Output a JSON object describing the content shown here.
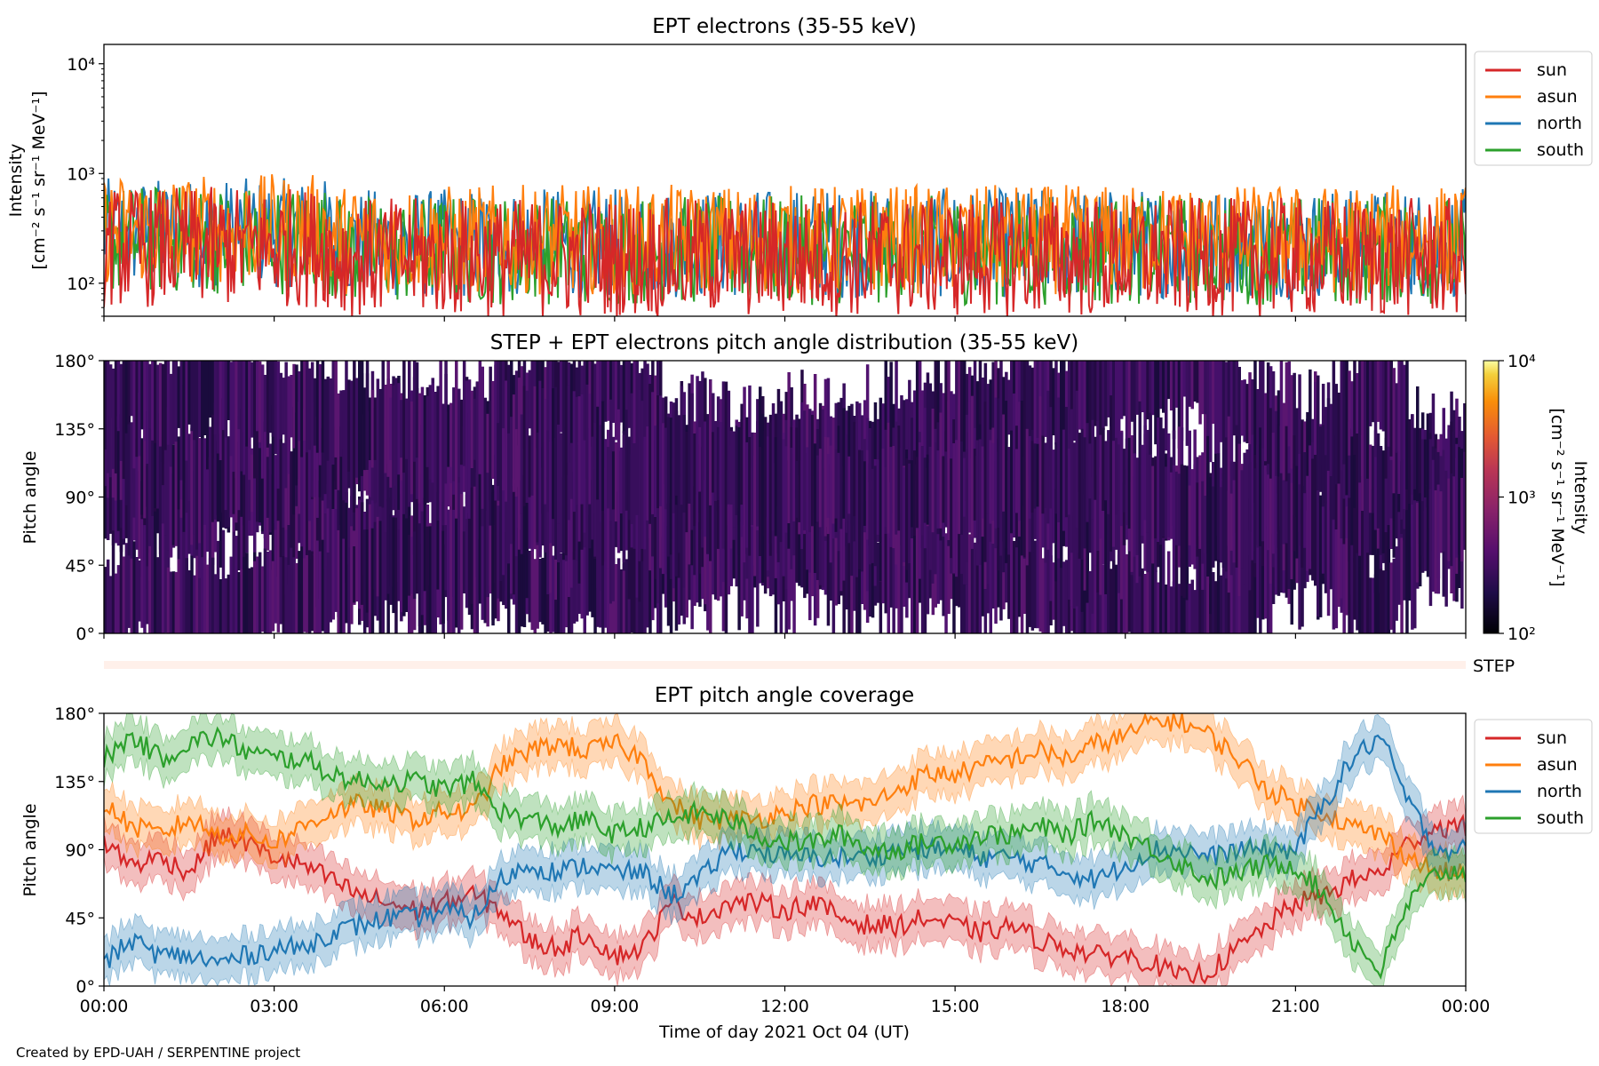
{
  "footer": "Created by EPD-UAH / SERPENTINE project",
  "xlabel": "Time of day 2021 Oct 04 (UT)",
  "x_ticks": [
    "00:00",
    "03:00",
    "06:00",
    "09:00",
    "12:00",
    "15:00",
    "18:00",
    "21:00",
    "00:00"
  ],
  "colors": {
    "sun": "#d62728",
    "asun": "#ff7f0e",
    "north": "#1f77b4",
    "south": "#2ca02c"
  },
  "chart_data": [
    {
      "type": "line",
      "title": "EPT electrons (35-55 keV)",
      "ylabel_line1": "Intensity",
      "ylabel_line2": "[cm⁻² s⁻¹ sr⁻¹ MeV⁻¹]",
      "y_scale": "log",
      "ylim": [
        50,
        15000
      ],
      "y_ticks": [
        {
          "value": 100,
          "label": "10²"
        },
        {
          "value": 1000,
          "label": "10³"
        },
        {
          "value": 10000,
          "label": "10⁴"
        }
      ],
      "xlim_hours": [
        0,
        24
      ],
      "legend": "outside-right",
      "series": [
        {
          "name": "sun",
          "color": "#d62728",
          "typical": 170,
          "spread": 0.55
        },
        {
          "name": "asun",
          "color": "#ff7f0e",
          "typical": 250,
          "spread": 0.5
        },
        {
          "name": "north",
          "color": "#1f77b4",
          "typical": 230,
          "spread": 0.5
        },
        {
          "name": "south",
          "color": "#2ca02c",
          "typical": 200,
          "spread": 0.5
        }
      ]
    },
    {
      "type": "heatmap",
      "title": "STEP + EPT electrons pitch angle distribution (35-55 keV)",
      "ylabel": "Pitch angle",
      "y_ticks": [
        "0°",
        "45°",
        "90°",
        "135°",
        "180°"
      ],
      "colorbar_label_line1": "Intensity",
      "colorbar_label_line2": "[cm⁻² s⁻¹ sr⁻¹ MeV⁻¹]",
      "colorbar_ticks": [
        "10²",
        "10³",
        "10⁴"
      ],
      "colorbar_range": [
        100,
        10000
      ],
      "colormap": "inferno",
      "step_label": "STEP"
    },
    {
      "type": "line",
      "title": "EPT pitch angle coverage",
      "ylabel": "Pitch angle",
      "ylim": [
        0,
        180
      ],
      "y_ticks": [
        "0°",
        "45°",
        "90°",
        "135°",
        "180°"
      ],
      "legend": "outside-right",
      "x_hours": [
        0,
        0.5,
        1,
        1.5,
        2,
        2.5,
        3,
        3.5,
        4,
        4.5,
        5,
        5.5,
        6,
        6.5,
        7,
        7.5,
        8,
        8.5,
        9,
        9.5,
        10,
        10.5,
        11,
        11.5,
        12,
        12.5,
        13,
        13.5,
        14,
        14.5,
        15,
        15.5,
        16,
        16.5,
        17,
        17.5,
        18,
        18.5,
        19,
        19.5,
        20,
        20.5,
        21,
        21.5,
        22,
        22.5,
        23,
        23.5,
        24
      ],
      "series": [
        {
          "name": "sun",
          "color": "#d62728",
          "values": [
            95,
            80,
            85,
            75,
            100,
            95,
            85,
            80,
            70,
            60,
            55,
            50,
            55,
            60,
            50,
            30,
            25,
            35,
            20,
            25,
            55,
            45,
            55,
            55,
            50,
            55,
            45,
            40,
            40,
            45,
            40,
            35,
            40,
            30,
            25,
            20,
            20,
            15,
            5,
            10,
            25,
            40,
            55,
            60,
            70,
            75,
            95,
            105,
            105
          ]
        },
        {
          "name": "asun",
          "color": "#ff7f0e",
          "values": [
            120,
            105,
            100,
            110,
            100,
            100,
            95,
            105,
            115,
            120,
            115,
            110,
            115,
            115,
            145,
            155,
            160,
            155,
            160,
            150,
            120,
            110,
            110,
            110,
            115,
            120,
            120,
            120,
            130,
            140,
            140,
            145,
            150,
            155,
            150,
            160,
            165,
            175,
            175,
            165,
            150,
            130,
            120,
            115,
            105,
            100,
            85,
            75,
            75
          ]
        },
        {
          "name": "north",
          "color": "#1f77b4",
          "values": [
            15,
            30,
            20,
            20,
            15,
            20,
            25,
            25,
            35,
            40,
            45,
            45,
            50,
            45,
            70,
            80,
            75,
            80,
            75,
            75,
            60,
            70,
            90,
            90,
            85,
            85,
            85,
            85,
            90,
            90,
            90,
            85,
            85,
            80,
            75,
            70,
            80,
            90,
            90,
            85,
            90,
            90,
            90,
            120,
            150,
            165,
            120,
            90,
            90
          ]
        },
        {
          "name": "south",
          "color": "#2ca02c",
          "values": [
            150,
            165,
            150,
            160,
            165,
            155,
            150,
            150,
            140,
            135,
            135,
            135,
            130,
            135,
            115,
            110,
            105,
            110,
            100,
            105,
            110,
            115,
            110,
            100,
            95,
            95,
            100,
            90,
            90,
            95,
            95,
            100,
            100,
            105,
            100,
            110,
            100,
            90,
            80,
            70,
            75,
            80,
            80,
            60,
            30,
            10,
            55,
            75,
            75
          ]
        }
      ]
    }
  ]
}
